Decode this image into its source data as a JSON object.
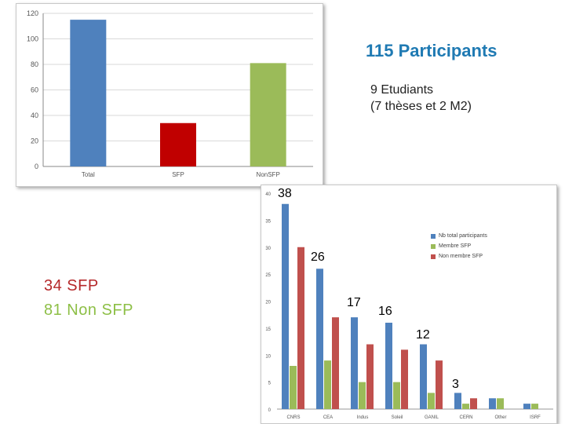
{
  "headline": "115 Participants",
  "students": {
    "line1": "9 Etudiants",
    "line2": "(7 thèses et 2 M2)"
  },
  "summary": {
    "sfp": "34 SFP",
    "non_sfp": "81 Non SFP"
  },
  "colors": {
    "blue": "#4f81bd",
    "red": "#c00000",
    "green": "#9bbb59",
    "red_bar": "#c0504d",
    "headline": "#1f7ab3",
    "sfp_text": "#b5282a",
    "nonsfp_text": "#8dbf46"
  },
  "chart_data": [
    {
      "type": "bar",
      "categories": [
        "Total",
        "SFP",
        "NonSFP"
      ],
      "values": [
        115,
        34,
        81
      ],
      "ylim": [
        0,
        120
      ],
      "yticks": [
        0,
        20,
        40,
        60,
        80,
        100,
        120
      ],
      "grid": true
    },
    {
      "type": "bar",
      "categories": [
        "CNRS",
        "CEA",
        "Indus",
        "Soleil",
        "GANIL",
        "CERN",
        "Other",
        "ISRF"
      ],
      "series": [
        {
          "name": "Nb total participants",
          "values": [
            38,
            26,
            17,
            16,
            12,
            3,
            2,
            1
          ]
        },
        {
          "name": "Membre SFP",
          "values": [
            8,
            9,
            5,
            5,
            3,
            1,
            2,
            1
          ]
        },
        {
          "name": "Non membre SFP",
          "values": [
            30,
            17,
            12,
            11,
            9,
            2,
            0,
            0
          ]
        }
      ],
      "ylim": [
        0,
        40
      ],
      "yticks": [
        0,
        5,
        10,
        15,
        20,
        25,
        30,
        35,
        40
      ],
      "grid": false,
      "legend": "top-right"
    }
  ],
  "callouts": [
    {
      "text": "38"
    },
    {
      "text": "26"
    },
    {
      "text": "17"
    },
    {
      "text": "16"
    },
    {
      "text": "12"
    },
    {
      "text": "3"
    }
  ]
}
